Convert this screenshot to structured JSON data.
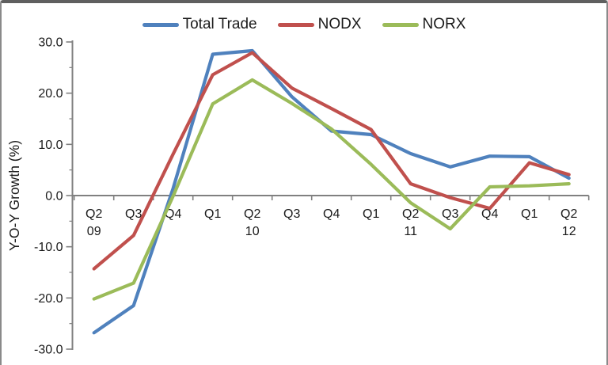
{
  "window": {
    "background": "#ffffff",
    "border_color": "#8a8a8a",
    "top_bar_color": "#5f5f5f"
  },
  "legend": {
    "position": "top",
    "items": [
      {
        "label": "Total Trade",
        "color": "#4F81BD"
      },
      {
        "label": "NODX",
        "color": "#C0504D"
      },
      {
        "label": "NORX",
        "color": "#9BBB59"
      }
    ]
  },
  "y_axis": {
    "title": "Y-O-Y Growth (%)",
    "tick_labels": [
      "30.0",
      "20.0",
      "10.0",
      "0.0",
      "-10.0",
      "-20.0",
      "-30.0"
    ],
    "color": "#808080"
  },
  "x_axis": {
    "quarter_labels": [
      "Q2",
      "Q3",
      "Q4",
      "Q1",
      "Q2",
      "Q3",
      "Q4",
      "Q1",
      "Q2",
      "Q3",
      "Q4",
      "Q1",
      "Q2"
    ],
    "year_labels": [
      "09",
      "",
      "",
      "",
      "10",
      "",
      "",
      "",
      "11",
      "",
      "",
      "",
      "12"
    ],
    "color": "#808080"
  },
  "chart_data": {
    "type": "line",
    "title": "",
    "xlabel": "",
    "ylabel": "Y-O-Y Growth (%)",
    "ylim": [
      -30,
      30
    ],
    "ytick_step": 10,
    "minor_ytick_step": 5,
    "grid": false,
    "legend_position": "top",
    "categories": [
      "Q2 09",
      "Q3 09",
      "Q4 09",
      "Q1 10",
      "Q2 10",
      "Q3 10",
      "Q4 10",
      "Q1 11",
      "Q2 11",
      "Q3 11",
      "Q4 11",
      "Q1 12",
      "Q2 12"
    ],
    "series": [
      {
        "name": "Total Trade",
        "color": "#4F81BD",
        "values": [
          -26.8,
          -21.5,
          1.4,
          27.6,
          28.3,
          19.3,
          12.6,
          11.9,
          8.2,
          5.6,
          7.7,
          7.6,
          3.4
        ]
      },
      {
        "name": "NODX",
        "color": "#C0504D",
        "values": [
          -14.3,
          -7.8,
          8.1,
          23.6,
          27.9,
          21.0,
          17.0,
          12.9,
          2.3,
          -0.4,
          -2.5,
          6.4,
          4.1
        ]
      },
      {
        "name": "NORX",
        "color": "#9BBB59",
        "values": [
          -20.2,
          -17.1,
          -0.1,
          17.9,
          22.6,
          18.0,
          13.0,
          6.1,
          -1.4,
          -6.5,
          1.7,
          1.9,
          2.3
        ]
      }
    ]
  }
}
